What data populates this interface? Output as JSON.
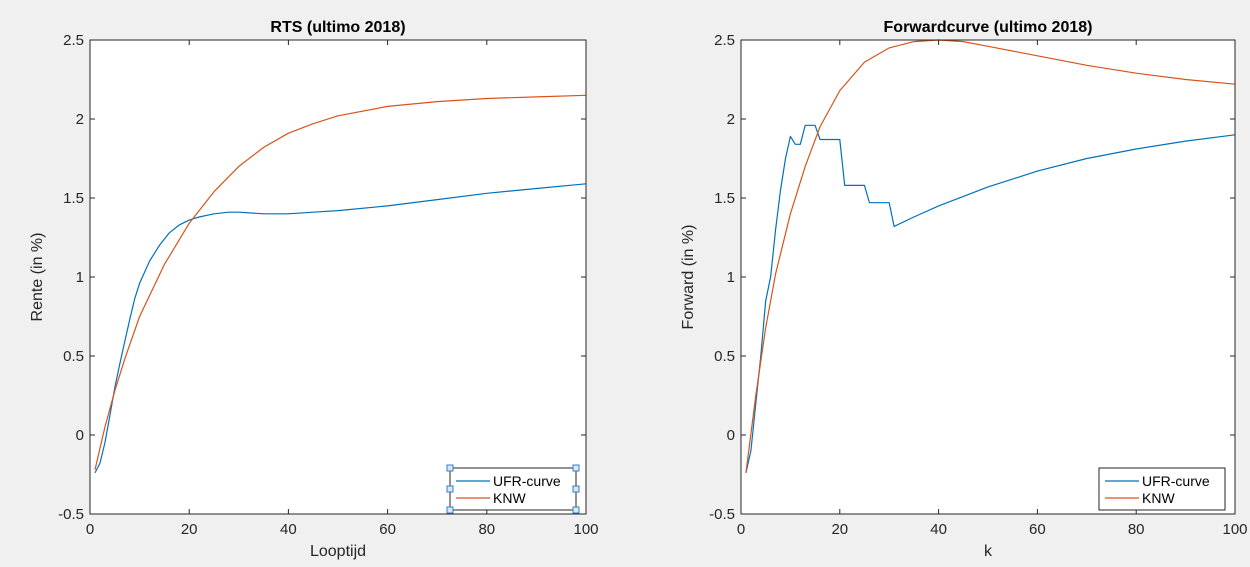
{
  "figure": {
    "background": "#f0f0f0"
  },
  "colors": {
    "ufr": "#0072bd",
    "knw": "#d95319",
    "axis": "#262626",
    "plot_bg": "#ffffff"
  },
  "chart_data": [
    {
      "type": "line",
      "title": "RTS (ultimo 2018)",
      "xlabel": "Looptijd",
      "ylabel": "Rente (in %)",
      "xlim": [
        0,
        100
      ],
      "ylim": [
        -0.5,
        2.5
      ],
      "xticks": [
        0,
        20,
        40,
        60,
        80,
        100
      ],
      "xtick_labels": [
        "0",
        "20",
        "40",
        "60",
        "80",
        "100"
      ],
      "yticks": [
        -0.5,
        0,
        0.5,
        1,
        1.5,
        2,
        2.5
      ],
      "ytick_labels": [
        "-0.5",
        "0",
        "0.5",
        "1",
        "1.5",
        "2",
        "2.5"
      ],
      "grid": false,
      "legend": {
        "position": "bottom-right",
        "selected": true
      },
      "series": [
        {
          "name": "UFR-curve",
          "color": "#0072bd",
          "x": [
            1,
            2,
            3,
            4,
            5,
            6,
            7,
            8,
            9,
            10,
            12,
            14,
            16,
            18,
            20,
            22,
            25,
            28,
            30,
            35,
            40,
            45,
            50,
            60,
            70,
            80,
            90,
            100
          ],
          "y": [
            -0.24,
            -0.18,
            -0.05,
            0.12,
            0.3,
            0.45,
            0.59,
            0.73,
            0.86,
            0.96,
            1.1,
            1.2,
            1.28,
            1.33,
            1.36,
            1.38,
            1.4,
            1.41,
            1.41,
            1.4,
            1.4,
            1.41,
            1.42,
            1.45,
            1.49,
            1.53,
            1.56,
            1.59
          ]
        },
        {
          "name": "KNW",
          "color": "#d95319",
          "x": [
            1,
            3,
            5,
            7,
            10,
            15,
            20,
            25,
            30,
            35,
            40,
            45,
            50,
            60,
            70,
            80,
            90,
            100
          ],
          "y": [
            -0.22,
            0.05,
            0.28,
            0.48,
            0.75,
            1.08,
            1.34,
            1.54,
            1.7,
            1.82,
            1.91,
            1.97,
            2.02,
            2.08,
            2.11,
            2.13,
            2.14,
            2.15
          ]
        }
      ]
    },
    {
      "type": "line",
      "title": "Forwardcurve (ultimo 2018)",
      "xlabel": "k",
      "ylabel": "Forward (in %)",
      "xlim": [
        0,
        100
      ],
      "ylim": [
        -0.5,
        2.5
      ],
      "xticks": [
        0,
        20,
        40,
        60,
        80,
        100
      ],
      "xtick_labels": [
        "0",
        "20",
        "40",
        "60",
        "80",
        "100"
      ],
      "yticks": [
        -0.5,
        0,
        0.5,
        1,
        1.5,
        2,
        2.5
      ],
      "ytick_labels": [
        "-0.5",
        "0",
        "0.5",
        "1",
        "1.5",
        "2",
        "2.5"
      ],
      "grid": false,
      "legend": {
        "position": "bottom-right",
        "selected": false
      },
      "series": [
        {
          "name": "UFR-curve",
          "color": "#0072bd",
          "x": [
            1,
            2,
            3,
            4,
            5,
            6,
            7,
            8,
            9,
            10,
            11,
            12,
            13,
            14,
            15,
            16,
            17,
            18,
            19,
            20,
            21,
            22,
            23,
            24,
            25,
            26,
            27,
            28,
            29,
            30,
            31,
            35,
            40,
            50,
            60,
            70,
            80,
            90,
            100
          ],
          "y": [
            -0.24,
            -0.1,
            0.2,
            0.5,
            0.85,
            1.0,
            1.3,
            1.55,
            1.75,
            1.89,
            1.84,
            1.84,
            1.96,
            1.96,
            1.96,
            1.87,
            1.87,
            1.87,
            1.87,
            1.87,
            1.58,
            1.58,
            1.58,
            1.58,
            1.58,
            1.47,
            1.47,
            1.47,
            1.47,
            1.47,
            1.32,
            1.38,
            1.45,
            1.57,
            1.67,
            1.75,
            1.81,
            1.86,
            1.9
          ]
        },
        {
          "name": "KNW",
          "color": "#d95319",
          "x": [
            1,
            3,
            5,
            7,
            10,
            13,
            16,
            20,
            25,
            30,
            35,
            40,
            45,
            50,
            60,
            70,
            80,
            90,
            100
          ],
          "y": [
            -0.24,
            0.25,
            0.68,
            1.02,
            1.4,
            1.7,
            1.95,
            2.18,
            2.36,
            2.45,
            2.49,
            2.5,
            2.49,
            2.46,
            2.4,
            2.34,
            2.29,
            2.25,
            2.22
          ]
        }
      ]
    }
  ]
}
